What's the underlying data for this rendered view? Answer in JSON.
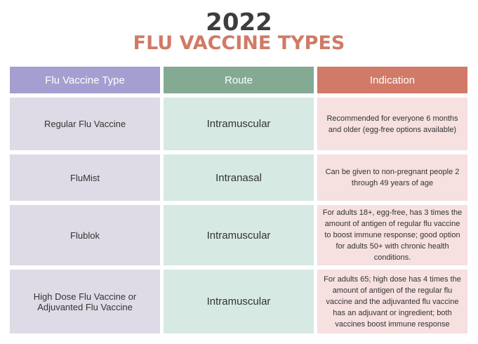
{
  "title": {
    "year": "2022",
    "subtitle": "FLU VACCINE TYPES"
  },
  "colors": {
    "purple": "#a49fd0",
    "green": "#84aa94",
    "red": "#d07a67"
  },
  "headers": [
    "Flu Vaccine Type",
    "Route",
    "Indication"
  ],
  "rows": [
    {
      "type": "Regular Flu Vaccine",
      "route": "Intramuscular",
      "indication": "Recommended for everyone 6 months and older (egg-free options available)"
    },
    {
      "type": "FluMist",
      "route": "Intranasal",
      "indication": "Can be given to non-pregnant people 2 through 49 years of age"
    },
    {
      "type": "Flublok",
      "route": "Intramuscular",
      "indication": "For adults 18+, egg-free, has 3 times the amount of antigen of regular flu vaccine to boost immune response; good option for adults 50+ with chronic health conditions."
    },
    {
      "type": "High Dose Flu Vaccine or Adjuvanted Flu Vaccine",
      "route": "Intramuscular",
      "indication": "For adults 65; high dose has 4 times the amount of antigen of the regular flu vaccine and the adjuvanted flu vaccine has an adjuvant or ingredient; both vaccines boost immune response"
    }
  ]
}
